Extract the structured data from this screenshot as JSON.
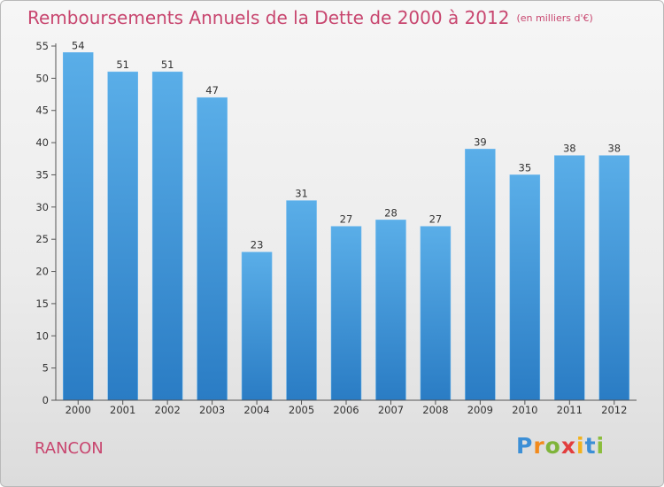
{
  "title": "Remboursements Annuels de la Dette de 2000 à 2012",
  "unit_note": "(en milliers d'€)",
  "commune": "RANCON",
  "logo_text": "Proxiti",
  "colors": {
    "title": "#c8466f",
    "bar_top": "#5aaee8",
    "bar_bottom": "#2a7cc4",
    "axis": "#555555"
  },
  "chart_data": {
    "type": "bar",
    "categories": [
      "2000",
      "2001",
      "2002",
      "2003",
      "2004",
      "2005",
      "2006",
      "2007",
      "2008",
      "2009",
      "2010",
      "2011",
      "2012"
    ],
    "values": [
      54,
      51,
      51,
      47,
      23,
      31,
      27,
      28,
      27,
      39,
      35,
      38,
      38
    ],
    "ylim": [
      0,
      55
    ],
    "yticks": [
      0,
      5,
      10,
      15,
      20,
      25,
      30,
      35,
      40,
      45,
      50,
      55
    ],
    "grid": false,
    "xlabel": "",
    "ylabel": ""
  }
}
